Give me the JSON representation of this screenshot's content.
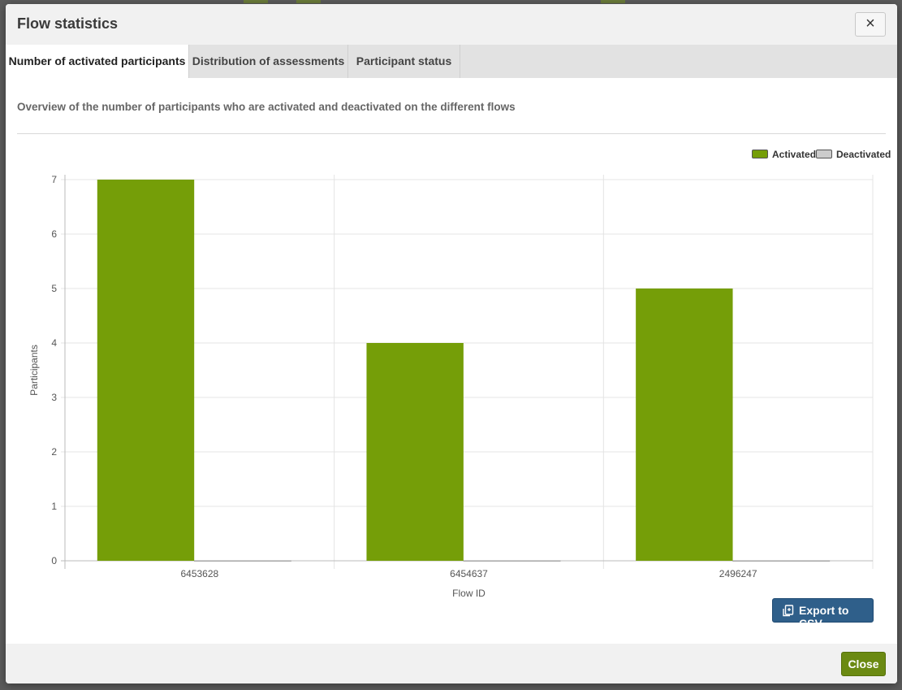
{
  "modal": {
    "title": "Flow statistics",
    "close_icon": "×",
    "description": "Overview of the number of participants who are activated and deactivated on the different flows"
  },
  "tabs": [
    {
      "label": "Number of activated participants",
      "active": true
    },
    {
      "label": "Distribution of assessments",
      "active": false
    },
    {
      "label": "Participant status",
      "active": false
    }
  ],
  "legend": [
    {
      "label": "Activated",
      "color": "#759e08"
    },
    {
      "label": "Deactivated",
      "color": "#cccccc"
    }
  ],
  "buttons": {
    "export_label": "Export to CSV",
    "export_icon": "export-icon",
    "close_label": "Close"
  },
  "colors": {
    "activated": "#759e08",
    "deactivated": "#cccccc",
    "export_button": "#2f5f8a",
    "close_button": "#6b8a12"
  },
  "chart_data": {
    "type": "bar",
    "categories": [
      "6453628",
      "6454637",
      "2496247"
    ],
    "series": [
      {
        "name": "Activated",
        "values": [
          7,
          4,
          5
        ]
      },
      {
        "name": "Deactivated",
        "values": [
          0,
          0,
          0
        ]
      }
    ],
    "title": "",
    "xlabel": "Flow ID",
    "ylabel": "Participants",
    "ylim": [
      0,
      7
    ],
    "yticks": [
      0,
      1,
      2,
      3,
      4,
      5,
      6,
      7
    ],
    "grid": true,
    "legend_position": "top-right"
  }
}
